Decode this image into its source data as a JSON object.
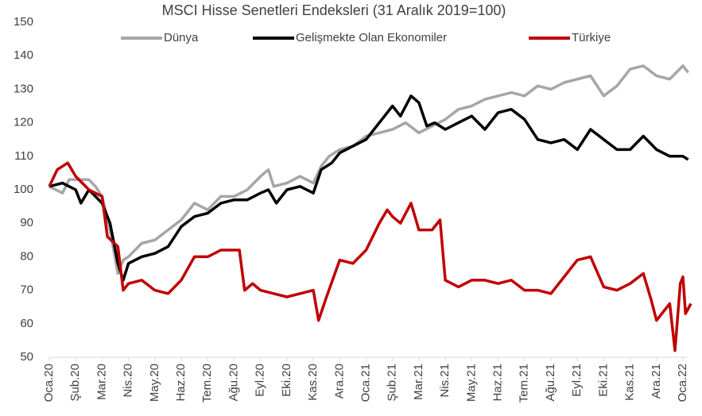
{
  "chart_data": {
    "type": "line",
    "title": "MSCI Hisse Senetleri Endeksleri (31 Aralık 2019=100)",
    "ylim": [
      50,
      150
    ],
    "yticks": [
      50,
      60,
      70,
      80,
      90,
      100,
      110,
      120,
      130,
      140,
      150
    ],
    "xlim": [
      0,
      24
    ],
    "xticks": [
      {
        "value": 0,
        "label": "Oca.20"
      },
      {
        "value": 1,
        "label": "Şub.20"
      },
      {
        "value": 2,
        "label": "Mar.20"
      },
      {
        "value": 3,
        "label": "Nis.20"
      },
      {
        "value": 4,
        "label": "May.20"
      },
      {
        "value": 5,
        "label": "Haz.20"
      },
      {
        "value": 6,
        "label": "Tem.20"
      },
      {
        "value": 7,
        "label": "Ağu.20"
      },
      {
        "value": 8,
        "label": "Eyl.20"
      },
      {
        "value": 9,
        "label": "Eki.20"
      },
      {
        "value": 10,
        "label": "Kas.20"
      },
      {
        "value": 11,
        "label": "Ara.20"
      },
      {
        "value": 12,
        "label": "Oca.21"
      },
      {
        "value": 13,
        "label": "Şub.21"
      },
      {
        "value": 14,
        "label": "Mar.21"
      },
      {
        "value": 15,
        "label": "Nis.21"
      },
      {
        "value": 16,
        "label": "May.21"
      },
      {
        "value": 17,
        "label": "Haz.21"
      },
      {
        "value": 18,
        "label": "Tem.21"
      },
      {
        "value": 19,
        "label": "Ağu.21"
      },
      {
        "value": 20,
        "label": "Eyl.21"
      },
      {
        "value": 21,
        "label": "Eki.21"
      },
      {
        "value": 22,
        "label": "Kas.21"
      },
      {
        "value": 23,
        "label": "Ara.21"
      },
      {
        "value": 24,
        "label": "Oca.22"
      }
    ],
    "legend": "top",
    "series": [
      {
        "name": "Dünya",
        "color": "#a6a6a6",
        "x": [
          0,
          0.5,
          0.75,
          1,
          1.5,
          1.75,
          2,
          2.3,
          2.6,
          2.8,
          3,
          3.5,
          4,
          4.5,
          5,
          5.5,
          6,
          6.5,
          7,
          7.5,
          8,
          8.3,
          8.5,
          9,
          9.5,
          10,
          10.3,
          10.6,
          11,
          11.5,
          12,
          12.5,
          13,
          13.5,
          14,
          14.5,
          15,
          15.5,
          16,
          16.5,
          17,
          17.5,
          18,
          18.5,
          19,
          19.5,
          20,
          20.5,
          21,
          21.5,
          22,
          22.5,
          23,
          23.5,
          24,
          24.2
        ],
        "values": [
          101,
          99,
          103,
          103,
          103,
          101,
          98,
          88,
          75,
          79,
          80,
          84,
          85,
          88,
          91,
          96,
          94,
          98,
          98,
          100,
          104,
          106,
          101,
          102,
          104,
          102,
          107,
          110,
          112,
          113,
          116,
          117,
          118,
          120,
          117,
          119,
          121,
          124,
          125,
          127,
          128,
          129,
          128,
          131,
          130,
          132,
          133,
          134,
          128,
          131,
          136,
          137,
          134,
          133,
          137,
          135
        ]
      },
      {
        "name": "Gelişmekte Olan Ekonomiler",
        "color": "#000000",
        "x": [
          0,
          0.5,
          1,
          1.2,
          1.5,
          2,
          2.3,
          2.6,
          2.8,
          3,
          3.5,
          4,
          4.5,
          5,
          5.5,
          6,
          6.5,
          7,
          7.5,
          8,
          8.3,
          8.6,
          9,
          9.5,
          10,
          10.3,
          10.7,
          11,
          11.5,
          12,
          12.5,
          13,
          13.3,
          13.7,
          14,
          14.3,
          14.6,
          15,
          15.5,
          16,
          16.5,
          17,
          17.5,
          18,
          18.5,
          19,
          19.5,
          20,
          20.5,
          21,
          21.5,
          22,
          22.5,
          23,
          23.5,
          24,
          24.2
        ],
        "values": [
          101,
          102,
          100,
          96,
          100,
          96,
          90,
          78,
          73,
          78,
          80,
          81,
          83,
          89,
          92,
          93,
          96,
          97,
          97,
          99,
          100,
          96,
          100,
          101,
          99,
          106,
          108,
          111,
          113,
          115,
          120,
          125,
          122,
          128,
          126,
          119,
          120,
          118,
          120,
          122,
          118,
          123,
          124,
          121,
          115,
          114,
          115,
          112,
          118,
          115,
          112,
          112,
          116,
          112,
          110,
          110,
          109
        ]
      },
      {
        "name": "Türkiye",
        "color": "#c00000",
        "x": [
          0,
          0.3,
          0.7,
          1,
          1.5,
          2,
          2.2,
          2.6,
          2.8,
          3,
          3.5,
          4,
          4.5,
          5,
          5.5,
          6,
          6.5,
          7,
          7.2,
          7.4,
          7.7,
          8,
          8.5,
          9,
          9.5,
          10,
          10.2,
          10.5,
          11,
          11.5,
          12,
          12.5,
          12.8,
          13,
          13.3,
          13.7,
          14,
          14.5,
          14.8,
          15,
          15.5,
          16,
          16.5,
          17,
          17.5,
          18,
          18.5,
          19,
          19.5,
          20,
          20.5,
          21,
          21.5,
          22,
          22.5,
          22.8,
          23,
          23.5,
          23.7,
          23.9,
          24,
          24.1,
          24.3
        ],
        "values": [
          101,
          106,
          108,
          104,
          100,
          98,
          86,
          83,
          70,
          72,
          73,
          70,
          69,
          73,
          80,
          80,
          82,
          82,
          82,
          70,
          72,
          70,
          69,
          68,
          69,
          70,
          61,
          68,
          79,
          78,
          82,
          90,
          94,
          92,
          90,
          96,
          88,
          88,
          91,
          73,
          71,
          73,
          73,
          72,
          73,
          70,
          70,
          69,
          74,
          79,
          80,
          71,
          70,
          72,
          75,
          67,
          61,
          66,
          52,
          72,
          74,
          63,
          66
        ]
      }
    ]
  }
}
